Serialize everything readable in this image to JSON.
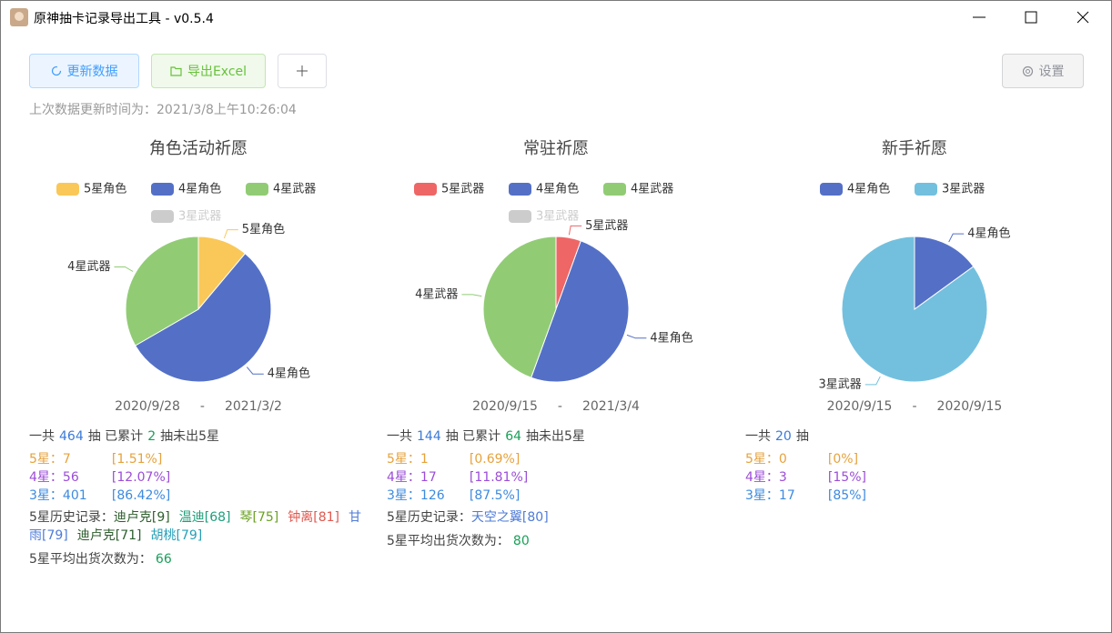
{
  "window": {
    "title": "原神抽卡记录导出工具 - v0.5.4"
  },
  "toolbar": {
    "refresh": "更新数据",
    "export": "导出Excel",
    "settings": "设置",
    "last_update": "上次数据更新时间为：2021/3/8上午10:26:04"
  },
  "chart_data": [
    {
      "type": "pie",
      "title": "角色活动祈愿",
      "categories": [
        "5星角色",
        "4星角色",
        "4星武器"
      ],
      "values": [
        7,
        35,
        21
      ],
      "colors": [
        "#fac858",
        "#5470c6",
        "#91cc75"
      ],
      "legend_off": [
        "3星武器"
      ]
    },
    {
      "type": "pie",
      "title": "常驻祈愿",
      "categories": [
        "5星武器",
        "4星角色",
        "4星武器"
      ],
      "values": [
        1,
        9,
        8
      ],
      "colors": [
        "#ee6666",
        "#5470c6",
        "#91cc75"
      ],
      "legend_off": [
        "3星武器"
      ]
    },
    {
      "type": "pie",
      "title": "新手祈愿",
      "categories": [
        "4星角色",
        "3星武器"
      ],
      "values": [
        3,
        17
      ],
      "colors": [
        "#5470c6",
        "#73c0de"
      ],
      "legend_off": []
    }
  ],
  "date_separator": "-",
  "panels": [
    {
      "dates": [
        "2020/9/28",
        "2021/3/2"
      ],
      "summary": [
        "一共",
        464,
        "抽 已累计",
        2,
        "抽未出5星"
      ],
      "stats": [
        {
          "label": "5星：",
          "count": 7,
          "pct": "[1.51%]"
        },
        {
          "label": "4星：",
          "count": 56,
          "pct": "[12.07%]"
        },
        {
          "label": "3星：",
          "count": 401,
          "pct": "[86.42%]"
        }
      ],
      "history_label": "5星历史记录：",
      "history": [
        {
          "text": "迪卢克[9]",
          "color": "#2e5e2e"
        },
        {
          "text": "温迪[68]",
          "color": "#1e9e7a"
        },
        {
          "text": "琴[75]",
          "color": "#6aa121"
        },
        {
          "text": "钟离[81]",
          "color": "#e0584f"
        },
        {
          "text": "甘雨[79]",
          "color": "#4e7bd8"
        },
        {
          "text": "迪卢克[71]",
          "color": "#2e5e2e"
        },
        {
          "text": "胡桃[79]",
          "color": "#26a0b8"
        }
      ],
      "average_label": "5星平均出货次数为：",
      "average": 66
    },
    {
      "dates": [
        "2020/9/15",
        "2021/3/4"
      ],
      "summary": [
        "一共",
        144,
        "抽 已累计",
        64,
        "抽未出5星"
      ],
      "stats": [
        {
          "label": "5星：",
          "count": 1,
          "pct": "[0.69%]"
        },
        {
          "label": "4星：",
          "count": 17,
          "pct": "[11.81%]"
        },
        {
          "label": "3星：",
          "count": 126,
          "pct": "[87.5%]"
        }
      ],
      "history_label": "5星历史记录：",
      "history": [
        {
          "text": "天空之翼[80]",
          "color": "#4e7bd8"
        }
      ],
      "average_label": "5星平均出货次数为：",
      "average": 80
    },
    {
      "dates": [
        "2020/9/15",
        "2020/9/15"
      ],
      "summary": [
        "一共",
        20,
        "抽"
      ],
      "stats": [
        {
          "label": "5星：",
          "count": 0,
          "pct": "[0%]"
        },
        {
          "label": "4星：",
          "count": 3,
          "pct": "[15%]"
        },
        {
          "label": "3星：",
          "count": 17,
          "pct": "[85%]"
        }
      ]
    }
  ]
}
